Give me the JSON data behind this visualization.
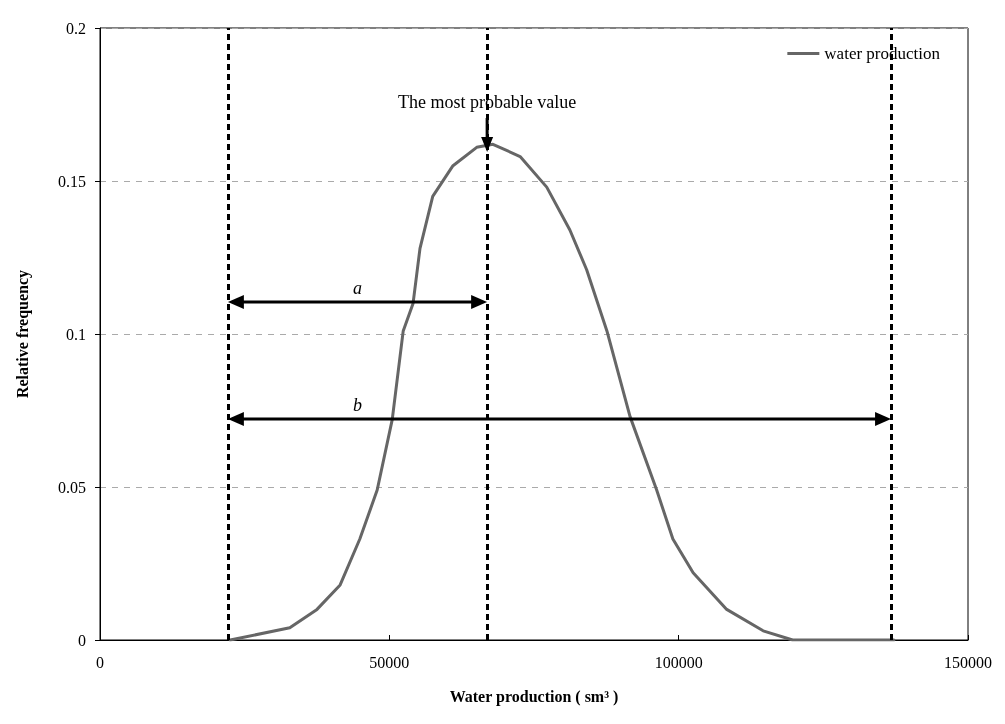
{
  "chart_data": {
    "type": "line",
    "xlabel": "Water production ( sm³ )",
    "ylabel": "Relative frequency",
    "series": [
      {
        "name": "water production",
        "color": "#666666",
        "x": [
          22500,
          32800,
          37500,
          41500,
          44900,
          47900,
          50500,
          52400,
          54100,
          55300,
          57500,
          61000,
          65100,
          67900,
          72600,
          77200,
          81200,
          84100,
          87600,
          91600,
          96200,
          99000,
          102500,
          108300,
          114600,
          119700,
          127900,
          137200
        ],
        "values": [
          0,
          0.004,
          0.01,
          0.018,
          0.033,
          0.049,
          0.072,
          0.101,
          0.11,
          0.128,
          0.145,
          0.155,
          0.161,
          0.162,
          0.158,
          0.148,
          0.134,
          0.121,
          0.101,
          0.073,
          0.049,
          0.033,
          0.022,
          0.01,
          0.003,
          0,
          0,
          0
        ]
      }
    ],
    "xlim": [
      0,
      150000
    ],
    "xticks": [
      0,
      50000,
      100000,
      150000
    ],
    "ylim": [
      0,
      0.2
    ],
    "yticks": [
      0,
      0.05,
      0.1,
      0.15,
      0.2
    ],
    "grid": "y",
    "legend": "top right",
    "marker": "none",
    "line_style": "solid",
    "ref_lines": [
      {
        "axis": "x",
        "value": 22100,
        "color": "#000000",
        "line_style": "dashed"
      },
      {
        "axis": "x",
        "value": 66900,
        "color": "#000000",
        "line_style": "dashed"
      },
      {
        "axis": "x",
        "value": 136700,
        "color": "#000000",
        "line_style": "dashed"
      }
    ],
    "annotations": [
      "The most probable value",
      "a",
      "b"
    ]
  }
}
